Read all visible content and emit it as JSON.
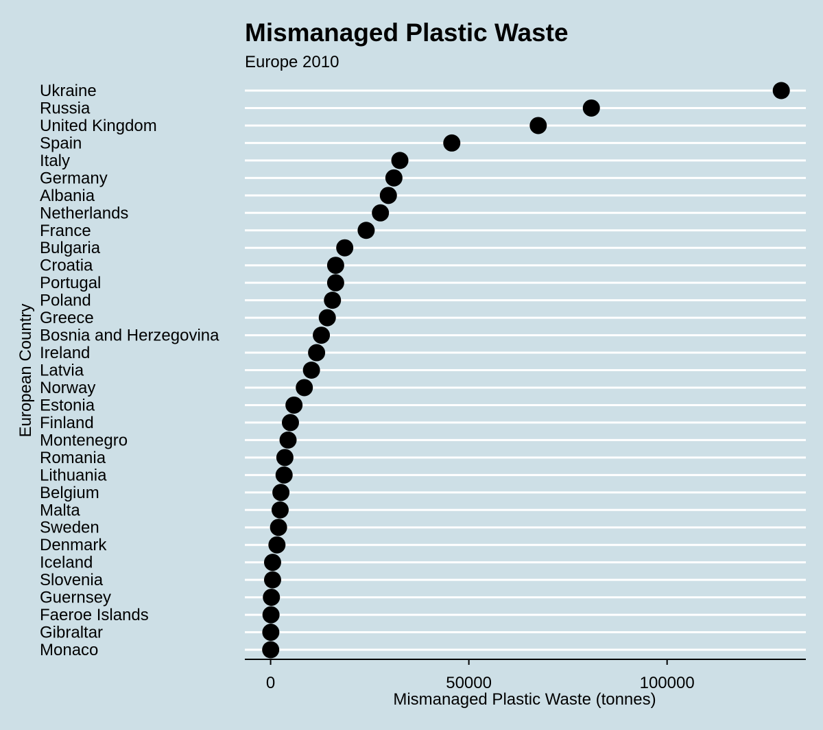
{
  "chart_data": {
    "type": "scatter",
    "title": "Mismanaged Plastic Waste",
    "subtitle": "Europe 2010",
    "xlabel": "Mismanaged Plastic Waste (tonnes)",
    "ylabel": "European Country",
    "xlim": [
      -6500,
      135000
    ],
    "xticks": [
      0,
      50000,
      100000
    ],
    "xtick_labels": [
      "0",
      "50000",
      "100000"
    ],
    "grid": "horizontal",
    "point_color": "#000000",
    "background_color": "#cddfe6",
    "gridline_color": "#ffffff",
    "categories": [
      "Ukraine",
      "Russia",
      "United Kingdom",
      "Spain",
      "Italy",
      "Germany",
      "Albania",
      "Netherlands",
      "France",
      "Bulgaria",
      "Croatia",
      "Portugal",
      "Poland",
      "Greece",
      "Bosnia and Herzegovina",
      "Ireland",
      "Latvia",
      "Norway",
      "Estonia",
      "Finland",
      "Montenegro",
      "Romania",
      "Lithuania",
      "Belgium",
      "Malta",
      "Sweden",
      "Denmark",
      "Iceland",
      "Slovenia",
      "Guernsey",
      "Faeroe Islands",
      "Gibraltar",
      "Monaco"
    ],
    "values": [
      128800,
      80900,
      67500,
      45700,
      32600,
      31100,
      29700,
      27700,
      24100,
      18700,
      16400,
      16400,
      15600,
      14300,
      12800,
      11600,
      10300,
      8500,
      5900,
      5000,
      4400,
      3600,
      3400,
      2600,
      2400,
      2000,
      1600,
      500,
      500,
      200,
      100,
      50,
      20
    ]
  }
}
